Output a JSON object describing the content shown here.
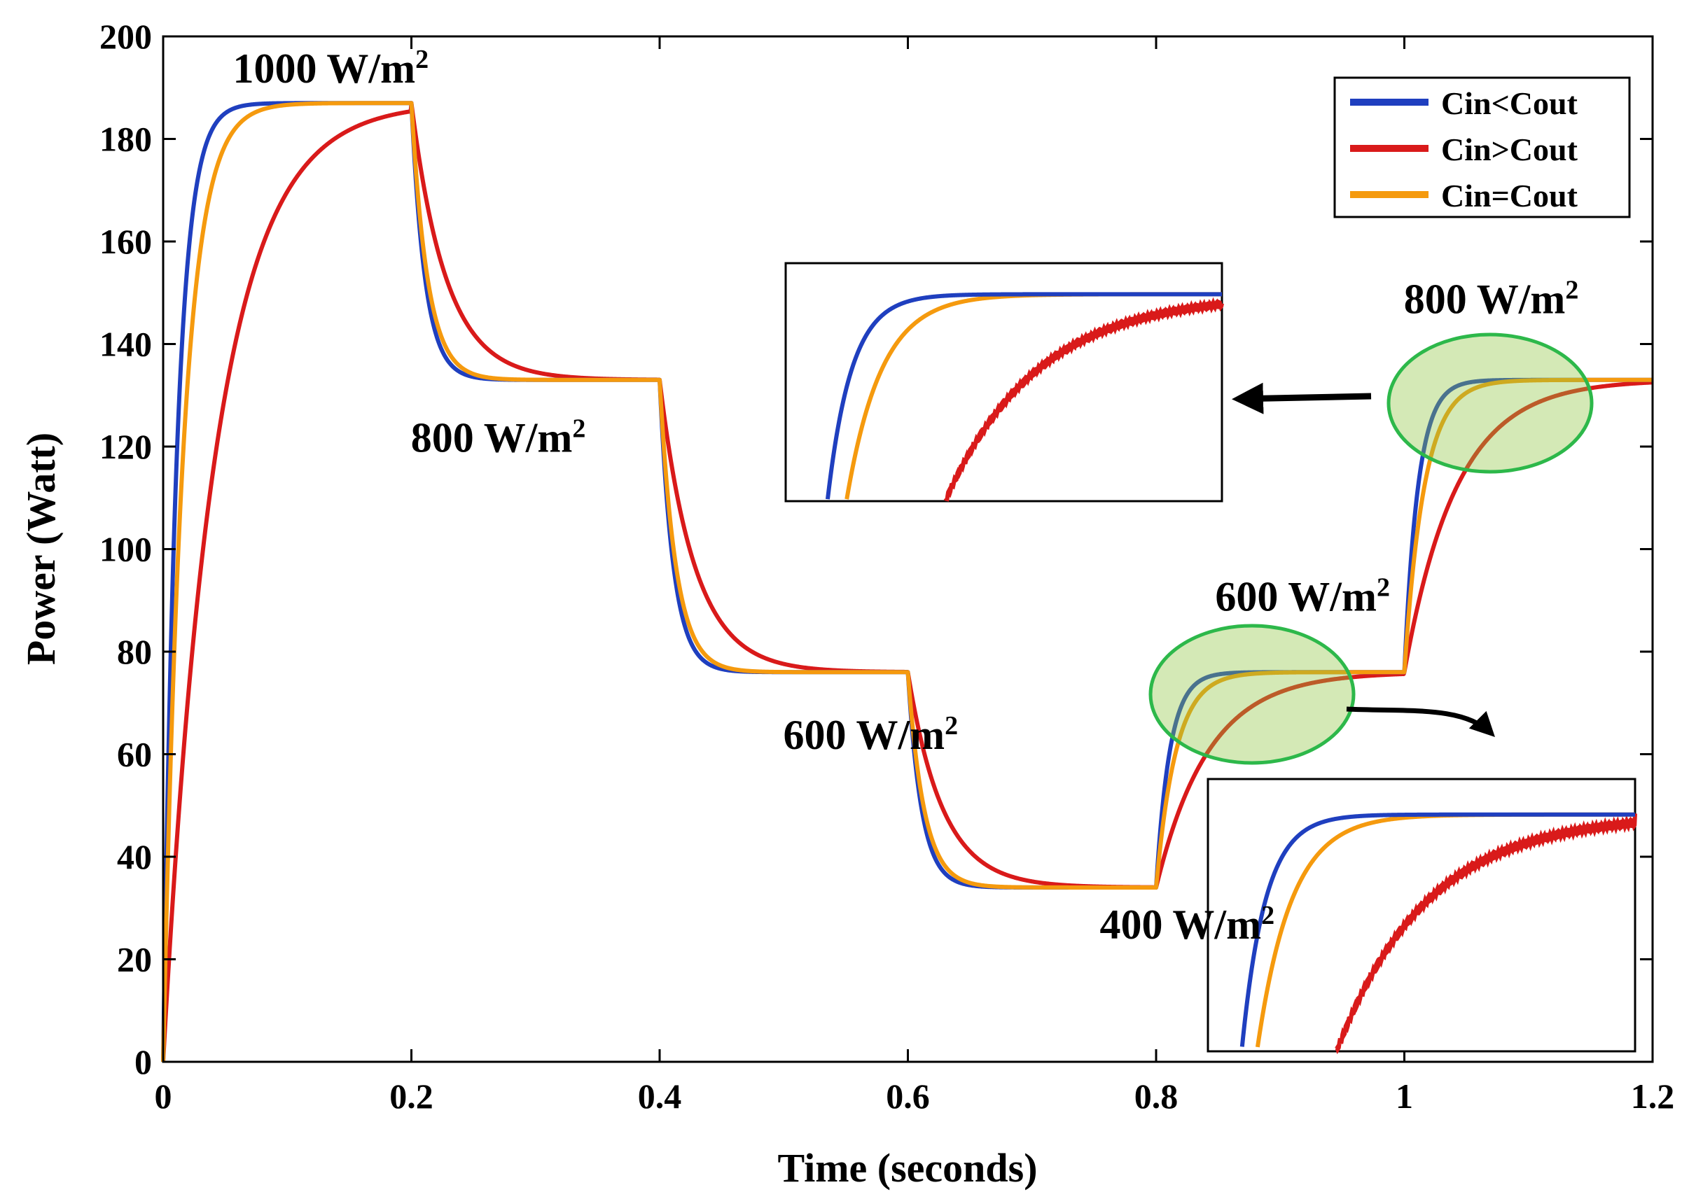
{
  "chart_data": {
    "type": "line",
    "title": "",
    "xlabel": "Time (seconds)",
    "ylabel": "Power (Watt)",
    "xlim": [
      0,
      1.2
    ],
    "ylim": [
      0,
      200
    ],
    "xticks": [
      0,
      0.2,
      0.4,
      0.6,
      0.8,
      1,
      1.2
    ],
    "xtick_labels": [
      "0",
      "0.2",
      "0.4",
      "0.6",
      "0.8",
      "1",
      "1.2"
    ],
    "yticks": [
      0,
      20,
      40,
      60,
      80,
      100,
      120,
      140,
      160,
      180,
      200
    ],
    "ytick_labels": [
      "0",
      "20",
      "40",
      "60",
      "80",
      "100",
      "120",
      "140",
      "160",
      "180",
      "200"
    ],
    "grid": false,
    "legend_position": "top-right",
    "step_times": [
      0,
      0.2,
      0.4,
      0.6,
      0.8,
      1.0
    ],
    "step_levels": [
      187,
      133,
      76,
      34,
      76,
      133
    ],
    "series": [
      {
        "name": "Cin<Cout",
        "color": "#1f3fbf",
        "tau_rise": 0.011,
        "tau_fall": 0.011
      },
      {
        "name": "Cin>Cout",
        "color": "#d91a1a",
        "tau_rise": 0.042,
        "tau_fall": 0.028
      },
      {
        "name": "Cin=Cout",
        "color": "#f59a0e",
        "tau_rise": 0.016,
        "tau_fall": 0.013
      }
    ],
    "annotations": [
      {
        "id": "ann-1000",
        "value": "1000 W/m",
        "sup": "2",
        "x": 0.135,
        "y": 191
      },
      {
        "id": "ann-800-a",
        "value": "800 W/m",
        "sup": "2",
        "x": 0.27,
        "y": 119
      },
      {
        "id": "ann-600-a",
        "value": "600 W/m",
        "sup": "2",
        "x": 0.57,
        "y": 61
      },
      {
        "id": "ann-400",
        "value": "400 W/m",
        "sup": "2",
        "x": 0.825,
        "y": 24
      },
      {
        "id": "ann-600-b",
        "value": "600 W/m",
        "sup": "2",
        "x": 0.918,
        "y": 88
      },
      {
        "id": "ann-800-b",
        "value": "800 W/m",
        "sup": "2",
        "x": 1.07,
        "y": 146
      }
    ],
    "zoom_regions": [
      {
        "id": "zoom-800",
        "target_level": 133,
        "x": [
          1.0,
          1.2
        ]
      },
      {
        "id": "zoom-600",
        "target_level": 76,
        "x": [
          0.8,
          1.0
        ]
      }
    ]
  }
}
